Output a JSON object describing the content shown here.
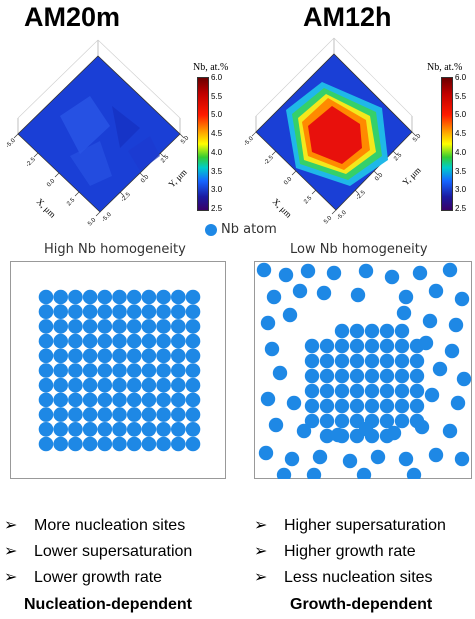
{
  "panels": [
    {
      "title": "AM20m",
      "colorbar": {
        "label": "Nb, at.%",
        "ticks": [
          "6.0",
          "5.5",
          "5.0",
          "4.5",
          "4.0",
          "3.5",
          "3.0",
          "2.5"
        ]
      },
      "axis_x": "X, μm",
      "axis_y": "Y, μm",
      "ticks_x": [
        "-5.0",
        "-2.5",
        "0.0",
        "2.5",
        "5.0"
      ],
      "ticks_y": [
        "5.0",
        "2.5",
        "0.0",
        "-2.5",
        "-5.0"
      ],
      "subtitle": "High Nb homogeneity",
      "bullets": [
        "More nucleation sites",
        "Lower supersaturation",
        "Lower growth rate"
      ],
      "conclusion": "Nucleation-dependent"
    },
    {
      "title": "AM12h",
      "colorbar": {
        "label": "Nb, at.%",
        "ticks": [
          "6.0",
          "5.5",
          "5.0",
          "4.5",
          "4.0",
          "3.5",
          "3.0",
          "2.5"
        ]
      },
      "axis_x": "X, μm",
      "axis_y": "Y, μm",
      "ticks_x": [
        "-5.0",
        "-2.5",
        "0.0",
        "2.5",
        "5.0"
      ],
      "ticks_y": [
        "5.0",
        "2.5",
        "0.0",
        "-2.5",
        "-5.0"
      ],
      "subtitle": "Low Nb homogeneity",
      "bullets": [
        "Higher supersaturation",
        "Higher growth rate",
        "Less nucleation sites"
      ],
      "conclusion": "Growth-dependent"
    }
  ],
  "legend": {
    "label": "Nb atom",
    "color": "#1e88e5"
  },
  "bullet_glyph": "➢",
  "colors": {
    "atom": "#1e88e5",
    "base_blue": "#1a3fd6",
    "hot_red": "#e8100c"
  }
}
